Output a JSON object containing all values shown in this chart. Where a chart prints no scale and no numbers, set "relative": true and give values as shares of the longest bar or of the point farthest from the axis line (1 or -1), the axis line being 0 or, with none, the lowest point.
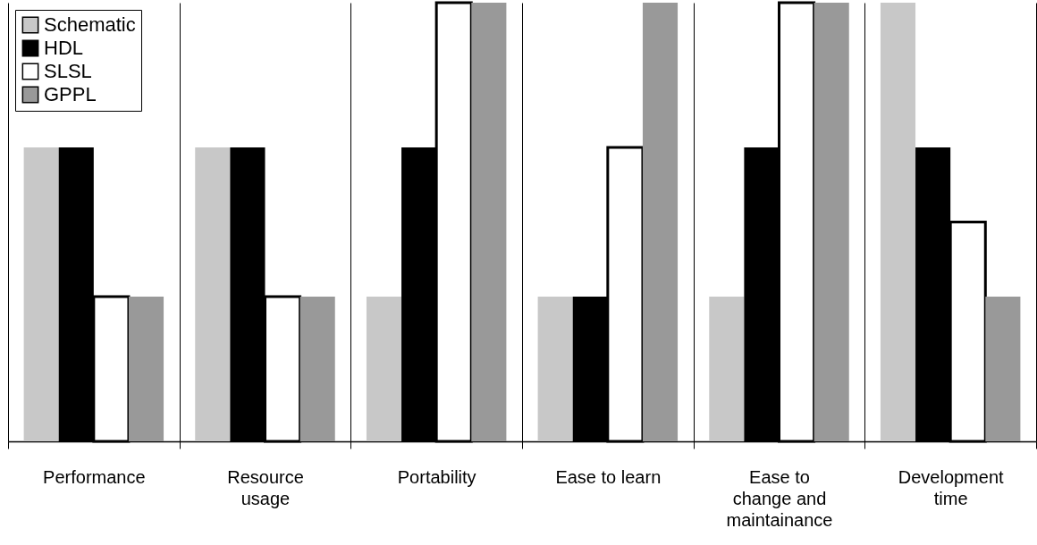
{
  "chart_data": {
    "type": "bar",
    "relative": true,
    "grid": "x",
    "legend": "top left",
    "categories": [
      "Performance",
      "Resource usage",
      "Portability",
      "Ease to learn",
      "Ease to change and maintainance",
      "Development time"
    ],
    "series": [
      {
        "name": "Schematic",
        "color": "#c8c8c8",
        "values": [
          0.67,
          0.67,
          0.33,
          0.33,
          0.33,
          1
        ]
      },
      {
        "name": "HDL",
        "color": "#000000",
        "values": [
          0.67,
          0.67,
          0.67,
          0.33,
          0.67,
          0.67
        ]
      },
      {
        "name": "SLSL",
        "color": "#ffffff",
        "values": [
          0.33,
          0.33,
          1,
          0.67,
          1,
          0.5
        ]
      },
      {
        "name": "GPPL",
        "color": "#999999",
        "values": [
          0.33,
          0.33,
          1,
          1,
          1,
          0.33
        ]
      }
    ]
  }
}
